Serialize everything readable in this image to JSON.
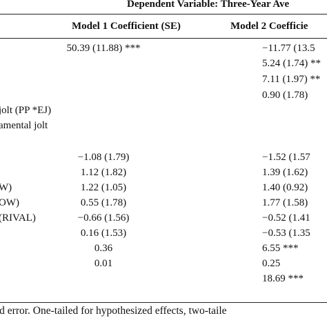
{
  "caption_header": "Dependent Variable: Three-Year Ave",
  "columns": [
    "Model 1 Coefficient (SE)",
    "Model 2 Coefficie"
  ],
  "rows": [
    {
      "label": "",
      "m1": "50.39 (11.88) ***",
      "m2": "−11.77 (13.5"
    },
    {
      "label": "",
      "m1": "",
      "m2": "5.24 (1.74) **"
    },
    {
      "label": "",
      "m1": "",
      "m2": "7.11 (1.97) **"
    },
    {
      "label": "",
      "m1": "",
      "m2": "0.90 (1.78)"
    },
    {
      "label": "jolt (PP *EJ)",
      "m1": "",
      "m2": ""
    },
    {
      "label": "amental jolt",
      "m1": "",
      "m2": ""
    },
    {
      "label": "",
      "m1": "",
      "m2": ""
    },
    {
      "label": "",
      "m1": "−1.08 (1.79)",
      "m2": "−1.52 (1.57"
    },
    {
      "label": "",
      "m1": "1.12 (1.82)",
      "m2": "1.39 (1.62)"
    },
    {
      "label": "W)",
      "m1": "1.22 (1.05)",
      "m2": "1.40 (0.92)"
    },
    {
      "label": "OW)",
      "m1": "0.55 (1.78)",
      "m2": "1.77 (1.58)"
    },
    {
      "label": "(RIVAL)",
      "m1": "−0.66 (1.56)",
      "m2": "−0.52 (1.41"
    },
    {
      "label": "",
      "m1": "0.16 (1.53)",
      "m2": "−0.53 (1.35"
    },
    {
      "label": "",
      "m1": "0.36",
      "m2": "6.55 ***"
    },
    {
      "label": "",
      "m1": "0.01",
      "m2": "0.25"
    },
    {
      "label": "",
      "m1": "",
      "m2": "18.69 ***"
    }
  ],
  "footnote": "rd error.  One-tailed for hypothesized effects, two-taile"
}
